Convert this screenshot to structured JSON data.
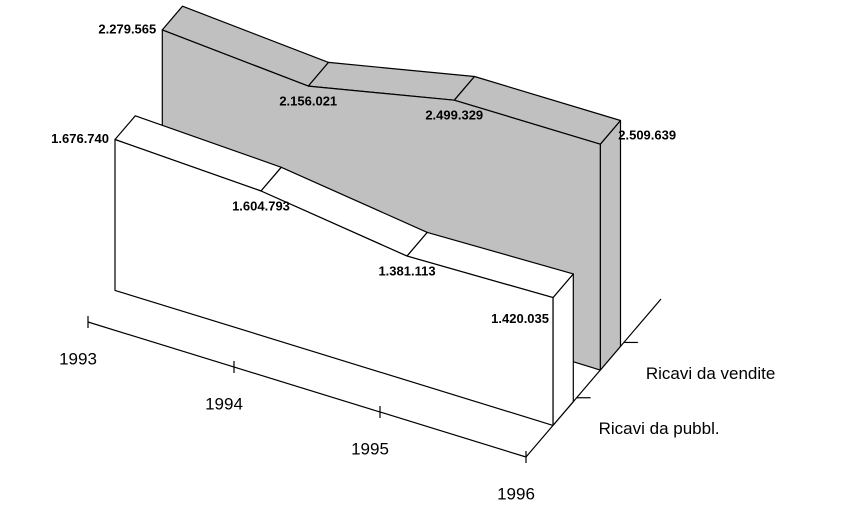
{
  "chart_data": {
    "type": "area3d",
    "categories": [
      "1993",
      "1994",
      "1995",
      "1996"
    ],
    "series": [
      {
        "name": "Ricavi da vendite",
        "color": "#c0c0c0",
        "values": [
          2279565,
          2156021,
          2499329,
          2509639
        ],
        "value_labels": [
          "2.279.565",
          "2.156.021",
          "2.499.329",
          "2.509.639"
        ]
      },
      {
        "name": "Ricavi da pubbl.",
        "color": "#ffffff",
        "values": [
          1676740,
          1604793,
          1381113,
          1420035
        ],
        "value_labels": [
          "1.676.740",
          "1.604.793",
          "1.381.113",
          "1.420.035"
        ]
      }
    ]
  }
}
